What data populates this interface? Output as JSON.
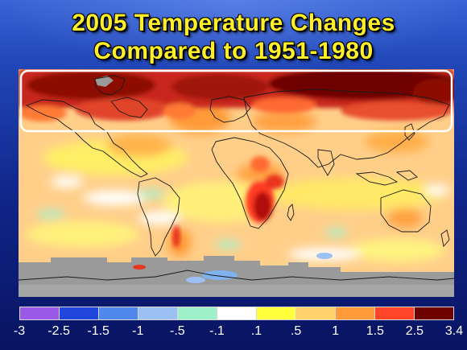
{
  "slide": {
    "title_line1": "2005 Temperature Changes",
    "title_line2": "Compared to 1951-1980",
    "title_color": "#ffef2b"
  },
  "map": {
    "projection": "equirectangular",
    "highlight": "Arctic latitude band outlined in white",
    "no_data_color": "#9a9a9a",
    "notable_warm_regions": [
      "Arctic",
      "northern Siberia",
      "northern Canada",
      "southern Africa",
      "central Africa",
      "Antarctic Peninsula"
    ],
    "notable_cool_regions": [
      "eastern tropical Pacific",
      "southern Indian Ocean",
      "Southern Ocean patches"
    ]
  },
  "legend": {
    "labels": [
      "-3",
      "-2.5",
      "-1.5",
      "-1",
      "-.5",
      "-.1",
      ".1",
      ".5",
      "1",
      "1.5",
      "2.5",
      "3.4"
    ],
    "colors": [
      "#9b59e8",
      "#2146dc",
      "#4f87ea",
      "#9dc0f4",
      "#9ef0c9",
      "#ffffff",
      "#ffff3c",
      "#ffd36a",
      "#ff9a38",
      "#ff4428",
      "#6e0000"
    ]
  }
}
